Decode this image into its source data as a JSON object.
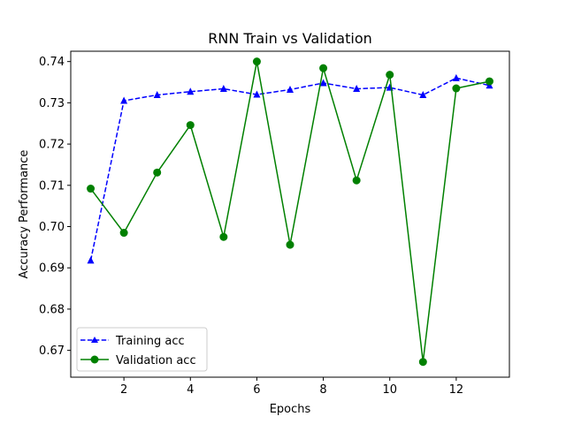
{
  "chart_data": {
    "type": "line",
    "title": "RNN Train vs Validation",
    "xlabel": "Epochs",
    "ylabel": "Accuracy Performance",
    "xlim": [
      0.4,
      13.6
    ],
    "ylim": [
      0.6635,
      0.7425
    ],
    "xticks": [
      2,
      4,
      6,
      8,
      10,
      12
    ],
    "yticks": [
      0.67,
      0.68,
      0.69,
      0.7,
      0.71,
      0.72,
      0.73,
      0.74
    ],
    "ytick_labels": [
      "0.67",
      "0.68",
      "0.69",
      "0.70",
      "0.71",
      "0.72",
      "0.73",
      "0.74"
    ],
    "grid": false,
    "legend_position": "lower-left",
    "x": [
      1,
      2,
      3,
      4,
      5,
      6,
      7,
      8,
      9,
      10,
      11,
      12,
      13
    ],
    "series": [
      {
        "name": "Training acc",
        "color": "#0000ff",
        "line_style": "dashed",
        "marker": "triangle",
        "values": [
          0.6918,
          0.7305,
          0.7319,
          0.7327,
          0.7334,
          0.732,
          0.7332,
          0.7348,
          0.7334,
          0.7337,
          0.7319,
          0.736,
          0.7342
        ]
      },
      {
        "name": "Validation acc",
        "color": "#008000",
        "line_style": "solid",
        "marker": "circle",
        "values": [
          0.7092,
          0.6985,
          0.7131,
          0.7246,
          0.6975,
          0.74,
          0.6956,
          0.7384,
          0.7112,
          0.7368,
          0.6672,
          0.7335,
          0.7352
        ]
      }
    ]
  }
}
